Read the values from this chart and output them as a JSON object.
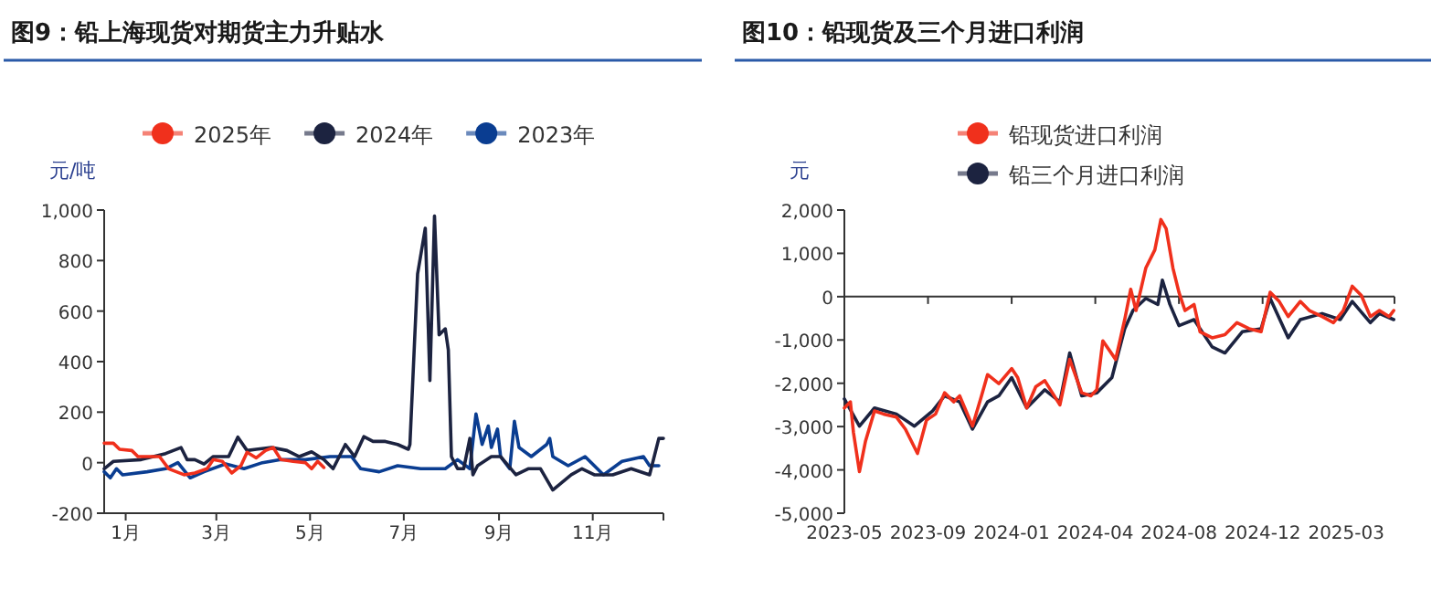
{
  "chart_data": [
    {
      "type": "line",
      "title": "图9：铅上海现货对期货主力升贴水",
      "ylabel": "元/吨",
      "legend": "top",
      "marker": "none",
      "xlim": [
        "--01-01",
        "--12-31"
      ],
      "xticks": [
        {
          "value": "--01-15",
          "label": "1月"
        },
        {
          "value": "--03-15",
          "label": "3月"
        },
        {
          "value": "--05-15",
          "label": "5月"
        },
        {
          "value": "--07-15",
          "label": "7月"
        },
        {
          "value": "--09-15",
          "label": "9月"
        },
        {
          "value": "--11-15",
          "label": "11月"
        }
      ],
      "ylim": [
        -200,
        1000
      ],
      "yticks": [
        {
          "value": -200,
          "label": "-200"
        },
        0,
        200,
        400,
        600,
        800,
        {
          "value": 1000,
          "label": "1,000"
        }
      ],
      "series": [
        {
          "name": "2025年",
          "color": "#f0301c",
          "x": [
            "--01-01",
            "--01-07",
            "--01-11",
            "--01-19",
            "--01-23",
            "--02-06",
            "--02-12",
            "--02-22",
            "--03-01",
            "--03-09",
            "--03-13",
            "--03-19",
            "--03-25",
            "--03-31",
            "--04-04",
            "--04-10",
            "--04-16",
            "--04-21",
            "--04-26",
            "--05-04",
            "--05-12",
            "--05-16",
            "--05-20",
            "--05-24"
          ],
          "values": [
            77,
            77,
            53,
            48,
            24,
            24,
            -24,
            -48,
            -41,
            -24,
            12,
            5,
            -41,
            -12,
            41,
            19,
            48,
            60,
            12,
            5,
            0,
            -24,
            5,
            -19
          ]
        },
        {
          "name": "2024年",
          "color": "#1c2340",
          "x": [
            "--01-01",
            "--01-07",
            "--01-25",
            "--02-10",
            "--02-20",
            "--02-24",
            "--03-01",
            "--03-07",
            "--03-13",
            "--03-23",
            "--03-29",
            "--04-04",
            "--04-10",
            "--04-20",
            "--04-30",
            "--05-08",
            "--05-16",
            "--05-24",
            "--05-30",
            "--06-07",
            "--06-13",
            "--06-19",
            "--06-25",
            "--07-03",
            "--07-11",
            "--07-18",
            "--07-19",
            "--07-24",
            "--07-29",
            "--08-01",
            "--08-04",
            "--08-07",
            "--08-11",
            "--08-13",
            "--08-15",
            "--08-19",
            "--08-23",
            "--08-27",
            "--08-29",
            "--09-01",
            "--09-10",
            "--09-16",
            "--09-26",
            "--10-04",
            "--10-12",
            "--10-20",
            "--11-01",
            "--11-08",
            "--11-16",
            "--11-28",
            "--12-10",
            "--12-22",
            "--12-28",
            "--12-31"
          ],
          "values": [
            -24,
            5,
            12,
            36,
            60,
            12,
            12,
            -5,
            24,
            24,
            101,
            48,
            53,
            60,
            48,
            24,
            43,
            12,
            -24,
            72,
            24,
            103,
            84,
            84,
            72,
            53,
            72,
            747,
            928,
            325,
            976,
            506,
            530,
            446,
            24,
            -24,
            -24,
            96,
            -48,
            -12,
            24,
            24,
            -48,
            -24,
            -24,
            -108,
            -48,
            -24,
            -48,
            -48,
            -24,
            -48,
            96,
            96
          ]
        },
        {
          "name": "2023年",
          "color": "#0a3d91",
          "x": [
            "--01-01",
            "--01-05",
            "--01-09",
            "--01-13",
            "--01-29",
            "--02-10",
            "--02-18",
            "--02-26",
            "--03-07",
            "--03-21",
            "--04-02",
            "--04-14",
            "--04-26",
            "--05-12",
            "--05-28",
            "--06-11",
            "--06-17",
            "--06-29",
            "--07-11",
            "--07-26",
            "--08-11",
            "--08-19",
            "--08-27",
            "--08-31",
            "--09-04",
            "--09-08",
            "--09-10",
            "--09-14",
            "--09-16",
            "--09-22",
            "--09-25",
            "--09-28",
            "--10-06",
            "--10-16",
            "--10-18",
            "--10-20",
            "--10-30",
            "--11-10",
            "--11-22",
            "--12-04",
            "--12-18",
            "--12-22",
            "--12-28"
          ],
          "values": [
            -36,
            -60,
            -24,
            -48,
            -36,
            -24,
            0,
            -60,
            -36,
            -5,
            -24,
            0,
            12,
            12,
            24,
            24,
            -24,
            -36,
            -12,
            -24,
            -24,
            12,
            -24,
            193,
            72,
            145,
            60,
            133,
            24,
            -24,
            164,
            60,
            24,
            72,
            96,
            24,
            -12,
            24,
            -48,
            5,
            24,
            -12,
            -12
          ]
        }
      ]
    },
    {
      "type": "line",
      "title": "图10：铅现货及三个月进口利润",
      "ylabel": "元",
      "legend": "top",
      "marker": "none",
      "xlim": [
        "2023-05-31",
        "2025-05-30"
      ],
      "xticks": [
        {
          "value": "2023-05-31",
          "label": "2023-05"
        },
        {
          "value": "2023-09-19",
          "label": "2023-09"
        },
        {
          "value": "2024-01-08",
          "label": "2024-01"
        },
        {
          "value": "2024-04-28",
          "label": "2024-04"
        },
        {
          "value": "2024-08-17",
          "label": "2024-08"
        },
        {
          "value": "2024-12-06",
          "label": "2024-12"
        },
        {
          "value": "2025-03-27",
          "label": "2025-03"
        }
      ],
      "ylim": [
        -5000,
        2000
      ],
      "yticks": [
        {
          "value": -5000,
          "label": "-5,000"
        },
        {
          "value": -4000,
          "label": "-4,000"
        },
        {
          "value": -3000,
          "label": "-3,000"
        },
        {
          "value": -2000,
          "label": "-2,000"
        },
        {
          "value": -1000,
          "label": "-1,000"
        },
        0,
        {
          "value": 1000,
          "label": "1,000"
        },
        {
          "value": 2000,
          "label": "2,000"
        }
      ],
      "ref_lines": [
        {
          "axis": "y",
          "value": 0,
          "color": "#333333"
        }
      ],
      "series": [
        {
          "name": "铅现货进口利润",
          "color": "#f0301c",
          "x": [
            "2023-05-31",
            "2023-06-08",
            "2023-06-12",
            "2023-06-20",
            "2023-06-28",
            "2023-07-10",
            "2023-07-22",
            "2023-08-08",
            "2023-08-20",
            "2023-09-05",
            "2023-09-17",
            "2023-09-29",
            "2023-10-11",
            "2023-10-23",
            "2023-10-31",
            "2023-11-17",
            "2023-11-29",
            "2023-12-07",
            "2023-12-22",
            "2024-01-08",
            "2024-01-16",
            "2024-01-28",
            "2024-02-09",
            "2024-02-21",
            "2024-03-12",
            "2024-03-25",
            "2024-04-10",
            "2024-04-22",
            "2024-04-30",
            "2024-05-08",
            "2024-05-25",
            "2024-06-06",
            "2024-06-14",
            "2024-06-21",
            "2024-07-04",
            "2024-07-16",
            "2024-07-24",
            "2024-07-31",
            "2024-08-09",
            "2024-08-17",
            "2024-08-25",
            "2024-09-06",
            "2024-09-14",
            "2024-09-30",
            "2024-10-17",
            "2024-11-02",
            "2024-11-18",
            "2024-12-04",
            "2024-12-16",
            "2024-12-28",
            "2025-01-09",
            "2025-01-25",
            "2025-02-06",
            "2025-02-23",
            "2025-03-10",
            "2025-03-23",
            "2025-04-04",
            "2025-04-16",
            "2025-04-28",
            "2025-05-10",
            "2025-05-23",
            "2025-05-29"
          ],
          "values": [
            -2570,
            -2430,
            -3130,
            -4040,
            -3340,
            -2640,
            -2710,
            -2780,
            -3060,
            -3620,
            -2850,
            -2710,
            -2220,
            -2430,
            -2290,
            -2990,
            -2290,
            -1800,
            -2010,
            -1660,
            -1870,
            -2570,
            -2080,
            -1940,
            -2500,
            -1450,
            -2220,
            -2290,
            -2150,
            -1020,
            -1450,
            -530,
            170,
            -320,
            660,
            1080,
            1780,
            1570,
            660,
            100,
            -320,
            -180,
            -810,
            -950,
            -880,
            -600,
            -740,
            -810,
            100,
            -110,
            -460,
            -110,
            -320,
            -460,
            -600,
            -320,
            240,
            30,
            -460,
            -320,
            -460,
            -320
          ]
        },
        {
          "name": "铅三个月进口利润",
          "color": "#1c2340",
          "x": [
            "2023-05-31",
            "2023-06-20",
            "2023-07-10",
            "2023-08-08",
            "2023-09-01",
            "2023-09-25",
            "2023-10-11",
            "2023-10-31",
            "2023-11-17",
            "2023-12-07",
            "2023-12-22",
            "2024-01-08",
            "2024-01-28",
            "2024-02-21",
            "2024-03-12",
            "2024-03-25",
            "2024-04-10",
            "2024-04-30",
            "2024-05-20",
            "2024-06-06",
            "2024-06-17",
            "2024-07-04",
            "2024-07-20",
            "2024-07-26",
            "2024-08-05",
            "2024-08-17",
            "2024-09-06",
            "2024-09-30",
            "2024-10-17",
            "2024-11-09",
            "2024-12-04",
            "2024-12-16",
            "2025-01-09",
            "2025-01-25",
            "2025-02-23",
            "2025-03-19",
            "2025-04-04",
            "2025-04-28",
            "2025-05-10",
            "2025-05-29"
          ],
          "values": [
            -2360,
            -2990,
            -2570,
            -2710,
            -2990,
            -2640,
            -2290,
            -2430,
            -3060,
            -2430,
            -2290,
            -1870,
            -2570,
            -2150,
            -2430,
            -1300,
            -2290,
            -2220,
            -1870,
            -740,
            -320,
            -40,
            -180,
            380,
            -180,
            -670,
            -530,
            -1160,
            -1300,
            -810,
            -740,
            -40,
            -950,
            -530,
            -390,
            -530,
            -110,
            -600,
            -390,
            -530
          ]
        }
      ]
    }
  ]
}
